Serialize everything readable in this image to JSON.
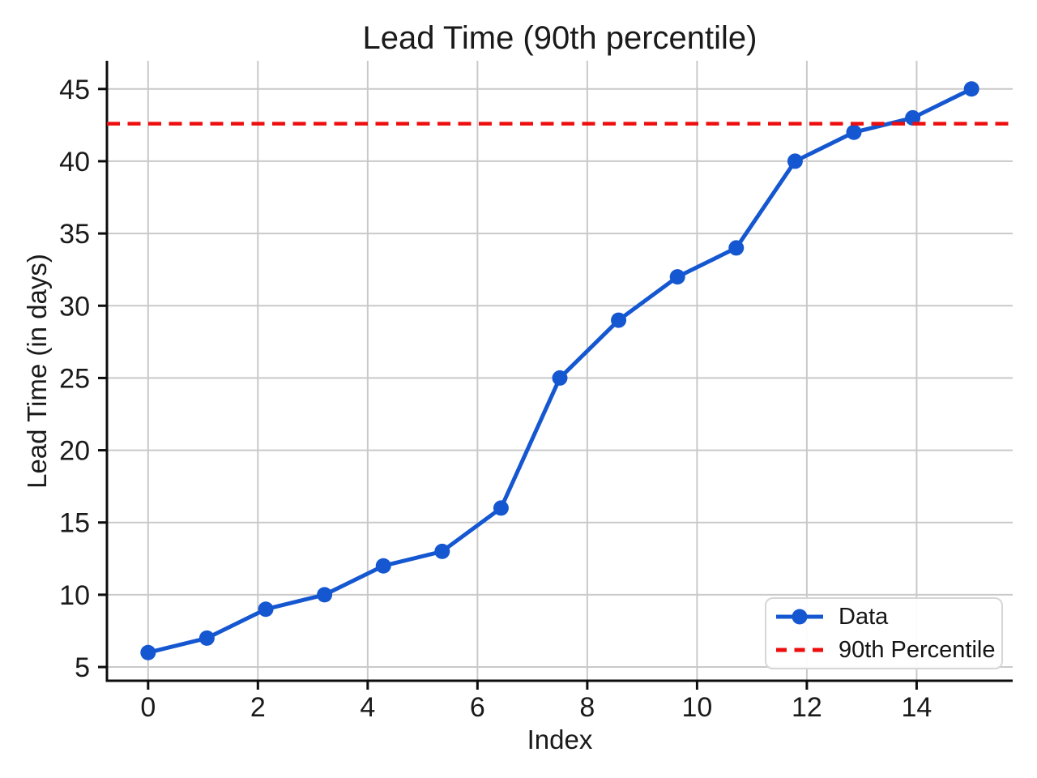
{
  "chart_data": {
    "type": "line",
    "title": "Lead Time (90th percentile)",
    "xlabel": "Index",
    "ylabel": "Lead Time (in days)",
    "x": [
      0,
      1.071,
      2.143,
      3.214,
      4.286,
      5.357,
      6.429,
      7.5,
      8.571,
      9.643,
      10.714,
      11.786,
      12.857,
      13.929,
      15
    ],
    "y": [
      6,
      7,
      9,
      10,
      12,
      13,
      16,
      25,
      29,
      32,
      34,
      40,
      42,
      43,
      45
    ],
    "percentile_line": {
      "value": 42.6,
      "style": "dashed"
    },
    "series": [
      {
        "name": "Data",
        "color": "#1557d0",
        "marker": "circle",
        "line": "solid"
      },
      {
        "name": "90th Percentile",
        "color": "#ee0d0d",
        "marker": "none",
        "line": "dashed"
      }
    ],
    "xticks": [
      0,
      2,
      4,
      6,
      8,
      10,
      12,
      14
    ],
    "yticks": [
      5,
      10,
      15,
      20,
      25,
      30,
      35,
      40,
      45
    ],
    "xlim": [
      -0.75,
      15.75
    ],
    "ylim": [
      4.05,
      46.95
    ],
    "grid": true,
    "legend_position": "lower right",
    "colors": {
      "grid": "#c9c9c9",
      "spine": "#0d0d0d",
      "tick_text": "#1a1a1a"
    }
  }
}
